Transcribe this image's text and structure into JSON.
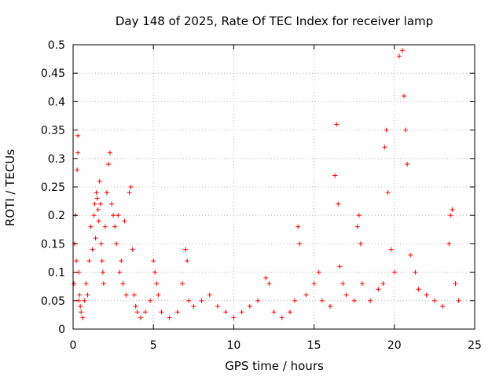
{
  "chart_data": {
    "type": "scatter",
    "title": "Day 148 of 2025, Rate Of TEC Index for receiver lamp",
    "xlabel": "GPS time / hours",
    "ylabel": "ROTI / TECUs",
    "xlim": [
      0,
      25
    ],
    "ylim": [
      0,
      0.5
    ],
    "xticks": [
      "0",
      "5",
      "10",
      "15",
      "20",
      "25"
    ],
    "yticks": [
      "0",
      "0.05",
      "0.1",
      "0.15",
      "0.2",
      "0.25",
      "0.3",
      "0.35",
      "0.4",
      "0.45",
      "0.5"
    ],
    "grid": true,
    "marker": "+",
    "color": "#ff0000",
    "series": [
      {
        "x": [
          0.05,
          0.1,
          0.15,
          0.2,
          0.25,
          0.3,
          0.3,
          0.35,
          0.35,
          0.4,
          0.45,
          0.5,
          0.6,
          0.7,
          0.8,
          0.9,
          1.0,
          1.1,
          1.2,
          1.3,
          1.35,
          1.4,
          1.45,
          1.5,
          1.55,
          1.6,
          1.65,
          1.7,
          1.75,
          1.8,
          1.85,
          1.9,
          2.0,
          2.1,
          2.2,
          2.3,
          2.4,
          2.5,
          2.6,
          2.7,
          2.8,
          2.9,
          3.0,
          3.1,
          3.2,
          3.3,
          3.5,
          3.6,
          3.7,
          3.8,
          3.9,
          4.0,
          4.2,
          4.5,
          4.8,
          5.0,
          5.1,
          5.2,
          5.3,
          5.5,
          6.0,
          6.5,
          6.8,
          7.0,
          7.1,
          7.2,
          7.5,
          8.0,
          8.5,
          9.0,
          9.5,
          10.0,
          10.5,
          11.0,
          11.5,
          12.0,
          12.2,
          12.5,
          13.0,
          13.5,
          13.8,
          14.0,
          14.1,
          14.5,
          15.0,
          15.3,
          15.5,
          16.0,
          16.3,
          16.4,
          16.5,
          16.6,
          16.8,
          17.0,
          17.5,
          17.7,
          17.8,
          17.9,
          18.0,
          18.5,
          19.0,
          19.3,
          19.4,
          19.5,
          19.6,
          19.8,
          20.0,
          20.3,
          20.5,
          20.6,
          20.7,
          20.8,
          21.0,
          21.3,
          21.5,
          22.0,
          22.5,
          23.0,
          23.4,
          23.5,
          23.6,
          23.8,
          24.0
        ],
        "y": [
          0.08,
          0.15,
          0.2,
          0.12,
          0.28,
          0.34,
          0.31,
          0.1,
          0.05,
          0.06,
          0.04,
          0.03,
          0.02,
          0.05,
          0.08,
          0.06,
          0.12,
          0.18,
          0.14,
          0.2,
          0.22,
          0.16,
          0.24,
          0.23,
          0.21,
          0.19,
          0.26,
          0.22,
          0.15,
          0.12,
          0.1,
          0.08,
          0.18,
          0.24,
          0.29,
          0.31,
          0.22,
          0.2,
          0.18,
          0.15,
          0.2,
          0.1,
          0.12,
          0.08,
          0.19,
          0.06,
          0.24,
          0.25,
          0.14,
          0.06,
          0.04,
          0.03,
          0.02,
          0.03,
          0.05,
          0.12,
          0.1,
          0.08,
          0.06,
          0.03,
          0.02,
          0.03,
          0.08,
          0.14,
          0.12,
          0.05,
          0.04,
          0.05,
          0.06,
          0.04,
          0.03,
          0.02,
          0.03,
          0.04,
          0.05,
          0.09,
          0.08,
          0.03,
          0.02,
          0.03,
          0.05,
          0.18,
          0.15,
          0.06,
          0.08,
          0.1,
          0.05,
          0.04,
          0.27,
          0.36,
          0.22,
          0.11,
          0.08,
          0.06,
          0.05,
          0.18,
          0.2,
          0.15,
          0.08,
          0.05,
          0.07,
          0.08,
          0.32,
          0.35,
          0.24,
          0.14,
          0.1,
          0.48,
          0.49,
          0.41,
          0.35,
          0.29,
          0.13,
          0.1,
          0.07,
          0.06,
          0.05,
          0.04,
          0.15,
          0.2,
          0.21,
          0.08,
          0.05
        ]
      }
    ]
  }
}
